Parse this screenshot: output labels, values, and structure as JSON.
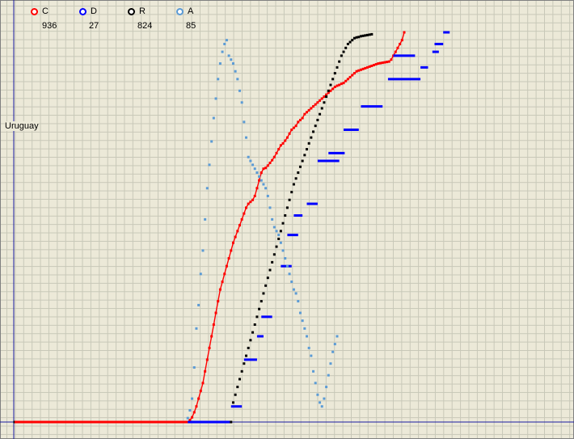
{
  "chart_data": {
    "type": "scatter",
    "region_label": "Uruguay",
    "grid": true,
    "legend_position": "top-left",
    "series": [
      {
        "name": "C",
        "value_label": "936",
        "color": "#ff0000",
        "style": "line-markers",
        "points": [
          [
            0,
            0
          ],
          [
            160,
            0
          ],
          [
            162,
            0.5
          ],
          [
            164,
            1.2
          ],
          [
            166,
            2.5
          ],
          [
            168,
            4
          ],
          [
            170,
            6
          ],
          [
            172,
            8
          ],
          [
            174,
            10
          ],
          [
            176,
            13
          ],
          [
            178,
            16
          ],
          [
            180,
            19
          ],
          [
            182,
            22
          ],
          [
            184,
            25
          ],
          [
            186,
            28
          ],
          [
            188,
            31
          ],
          [
            190,
            34
          ],
          [
            192,
            36
          ],
          [
            194,
            38
          ],
          [
            196,
            40
          ],
          [
            198,
            42
          ],
          [
            200,
            44
          ],
          [
            202,
            46
          ],
          [
            204,
            47.5
          ],
          [
            206,
            49
          ],
          [
            208,
            50.5
          ],
          [
            210,
            52
          ],
          [
            212,
            53.5
          ],
          [
            214,
            55
          ],
          [
            216,
            56
          ],
          [
            218,
            56.5
          ],
          [
            220,
            57
          ],
          [
            222,
            58
          ],
          [
            224,
            60
          ],
          [
            226,
            62
          ],
          [
            228,
            64
          ],
          [
            230,
            65
          ],
          [
            232,
            65.2
          ],
          [
            234,
            65.8
          ],
          [
            236,
            66.5
          ],
          [
            238,
            67.2
          ],
          [
            240,
            68
          ],
          [
            242,
            69
          ],
          [
            244,
            70
          ],
          [
            246,
            71
          ],
          [
            248,
            71.5
          ],
          [
            250,
            72.2
          ],
          [
            252,
            73
          ],
          [
            254,
            74
          ],
          [
            256,
            75
          ],
          [
            258,
            75.5
          ],
          [
            260,
            76
          ],
          [
            262,
            77
          ],
          [
            264,
            77.5
          ],
          [
            266,
            78
          ],
          [
            268,
            79
          ],
          [
            270,
            79.5
          ],
          [
            272,
            80
          ],
          [
            274,
            80.5
          ],
          [
            276,
            81
          ],
          [
            278,
            81.5
          ],
          [
            280,
            82
          ],
          [
            282,
            82.5
          ],
          [
            284,
            83
          ],
          [
            286,
            83.5
          ],
          [
            288,
            84
          ],
          [
            290,
            84.5
          ],
          [
            292,
            85
          ],
          [
            294,
            85.5
          ],
          [
            296,
            86
          ],
          [
            298,
            86.3
          ],
          [
            300,
            86.5
          ],
          [
            302,
            86.8
          ],
          [
            304,
            87
          ],
          [
            306,
            87.5
          ],
          [
            308,
            88
          ],
          [
            310,
            88.5
          ],
          [
            312,
            89
          ],
          [
            314,
            89.5
          ],
          [
            316,
            90
          ],
          [
            318,
            90.2
          ],
          [
            320,
            90.4
          ],
          [
            322,
            90.6
          ],
          [
            324,
            90.8
          ],
          [
            326,
            91
          ],
          [
            328,
            91.2
          ],
          [
            330,
            91.4
          ],
          [
            332,
            91.6
          ],
          [
            334,
            91.8
          ],
          [
            336,
            92
          ],
          [
            338,
            92.1
          ],
          [
            340,
            92.2
          ],
          [
            342,
            92.3
          ],
          [
            344,
            92.4
          ],
          [
            346,
            92.5
          ],
          [
            348,
            93
          ],
          [
            350,
            94
          ],
          [
            352,
            95
          ],
          [
            354,
            96
          ],
          [
            356,
            97
          ],
          [
            358,
            98
          ],
          [
            360,
            100
          ]
        ]
      },
      {
        "name": "D",
        "value_label": "27",
        "color": "#0000ff",
        "style": "steps",
        "segments": [
          [
            [
              0,
              0
            ],
            [
              200,
              0
            ]
          ],
          [
            [
              200,
              4
            ],
            [
              210,
              4
            ]
          ],
          [
            [
              212,
              16
            ],
            [
              224,
              16
            ]
          ],
          [
            [
              224,
              22
            ],
            [
              230,
              22
            ]
          ],
          [
            [
              228,
              27
            ],
            [
              238,
              27
            ]
          ],
          [
            [
              246,
              40
            ],
            [
              256,
              40
            ]
          ],
          [
            [
              252,
              48
            ],
            [
              262,
              48
            ]
          ],
          [
            [
              258,
              53
            ],
            [
              266,
              53
            ]
          ],
          [
            [
              270,
              56
            ],
            [
              280,
              56
            ]
          ],
          [
            [
              280,
              67
            ],
            [
              300,
              67
            ]
          ],
          [
            [
              290,
              69
            ],
            [
              305,
              69
            ]
          ],
          [
            [
              304,
              75
            ],
            [
              318,
              75
            ]
          ],
          [
            [
              320,
              81
            ],
            [
              340,
              81
            ]
          ],
          [
            [
              345,
              88
            ],
            [
              375,
              88
            ]
          ],
          [
            [
              350,
              94
            ],
            [
              370,
              94
            ]
          ],
          [
            [
              375,
              91
            ],
            [
              382,
              91
            ]
          ],
          [
            [
              386,
              95
            ],
            [
              392,
              95
            ]
          ],
          [
            [
              388,
              97
            ],
            [
              396,
              97
            ]
          ],
          [
            [
              396,
              100
            ],
            [
              402,
              100
            ]
          ]
        ]
      },
      {
        "name": "R",
        "value_label": "824",
        "color": "#000000",
        "style": "markers",
        "points": [
          [
            0,
            0
          ],
          [
            200,
            0
          ],
          [
            202,
            5
          ],
          [
            204,
            7
          ],
          [
            206,
            9
          ],
          [
            208,
            11
          ],
          [
            210,
            13
          ],
          [
            212,
            15
          ],
          [
            214,
            17
          ],
          [
            216,
            19
          ],
          [
            218,
            21
          ],
          [
            220,
            23
          ],
          [
            222,
            25
          ],
          [
            224,
            27
          ],
          [
            226,
            29
          ],
          [
            228,
            31
          ],
          [
            230,
            33
          ],
          [
            232,
            35
          ],
          [
            234,
            37
          ],
          [
            236,
            39
          ],
          [
            238,
            41
          ],
          [
            240,
            43
          ],
          [
            242,
            45
          ],
          [
            244,
            47
          ],
          [
            246,
            49
          ],
          [
            248,
            51
          ],
          [
            250,
            53
          ],
          [
            252,
            55
          ],
          [
            254,
            57
          ],
          [
            256,
            59
          ],
          [
            258,
            61
          ],
          [
            260,
            62.5
          ],
          [
            262,
            64
          ],
          [
            264,
            65.5
          ],
          [
            266,
            67
          ],
          [
            268,
            68.5
          ],
          [
            270,
            70
          ],
          [
            272,
            71.5
          ],
          [
            274,
            73
          ],
          [
            276,
            74.5
          ],
          [
            278,
            76
          ],
          [
            280,
            77.5
          ],
          [
            282,
            79
          ],
          [
            284,
            80.5
          ],
          [
            286,
            82
          ],
          [
            288,
            83.5
          ],
          [
            290,
            85
          ],
          [
            292,
            86.5
          ],
          [
            294,
            88
          ],
          [
            296,
            89.5
          ],
          [
            298,
            91
          ],
          [
            300,
            92.5
          ],
          [
            302,
            94
          ],
          [
            304,
            95
          ],
          [
            306,
            96
          ],
          [
            308,
            97
          ],
          [
            310,
            97.5
          ],
          [
            312,
            98
          ],
          [
            314,
            98.5
          ],
          [
            316,
            98.7
          ],
          [
            318,
            98.8
          ],
          [
            320,
            99
          ],
          [
            322,
            99.1
          ],
          [
            324,
            99.2
          ],
          [
            326,
            99.3
          ],
          [
            328,
            99.4
          ],
          [
            330,
            99.5
          ]
        ]
      },
      {
        "name": "A",
        "value_label": "85",
        "color": "#5b9bd5",
        "style": "markers",
        "points": [
          [
            160,
            1
          ],
          [
            162,
            3
          ],
          [
            164,
            6
          ],
          [
            166,
            14
          ],
          [
            168,
            24
          ],
          [
            170,
            30
          ],
          [
            172,
            38
          ],
          [
            174,
            44
          ],
          [
            176,
            52
          ],
          [
            178,
            60
          ],
          [
            180,
            66
          ],
          [
            182,
            72
          ],
          [
            184,
            78
          ],
          [
            186,
            83
          ],
          [
            188,
            88
          ],
          [
            190,
            92
          ],
          [
            192,
            95
          ],
          [
            194,
            97
          ],
          [
            196,
            98
          ],
          [
            198,
            94
          ],
          [
            200,
            93
          ],
          [
            202,
            92
          ],
          [
            204,
            90
          ],
          [
            206,
            88
          ],
          [
            208,
            85
          ],
          [
            210,
            82
          ],
          [
            212,
            77
          ],
          [
            214,
            73
          ],
          [
            216,
            68
          ],
          [
            218,
            67
          ],
          [
            220,
            66
          ],
          [
            222,
            65
          ],
          [
            224,
            64
          ],
          [
            226,
            63
          ],
          [
            228,
            62
          ],
          [
            230,
            61
          ],
          [
            232,
            60
          ],
          [
            234,
            58
          ],
          [
            236,
            55
          ],
          [
            238,
            52
          ],
          [
            240,
            50
          ],
          [
            242,
            49
          ],
          [
            244,
            48
          ],
          [
            246,
            46
          ],
          [
            248,
            44
          ],
          [
            250,
            42
          ],
          [
            252,
            40
          ],
          [
            254,
            38
          ],
          [
            256,
            36
          ],
          [
            258,
            34
          ],
          [
            260,
            33
          ],
          [
            262,
            31
          ],
          [
            264,
            28
          ],
          [
            266,
            26
          ],
          [
            268,
            24
          ],
          [
            270,
            22
          ],
          [
            272,
            19
          ],
          [
            274,
            17
          ],
          [
            276,
            13
          ],
          [
            278,
            10
          ],
          [
            280,
            7
          ],
          [
            282,
            5
          ],
          [
            284,
            4
          ],
          [
            286,
            6
          ],
          [
            288,
            9
          ],
          [
            290,
            12
          ],
          [
            292,
            15
          ],
          [
            294,
            18
          ],
          [
            296,
            20
          ],
          [
            298,
            22
          ]
        ]
      }
    ]
  }
}
